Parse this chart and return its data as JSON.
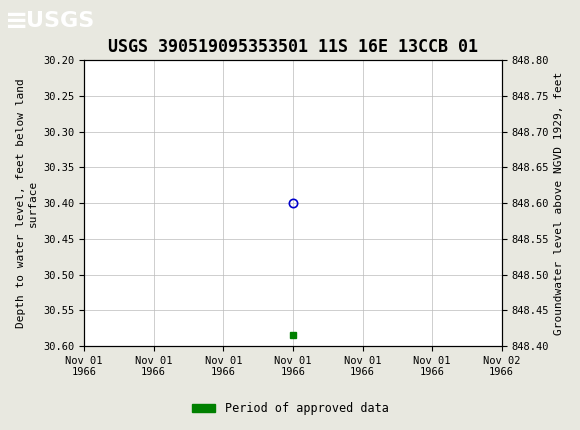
{
  "title": "USGS 390519095353501 11S 16E 13CCB 01",
  "header_color": "#1a6b3c",
  "header_text_color": "#ffffff",
  "background_color": "#e8e8e0",
  "plot_bg_color": "#ffffff",
  "grid_color": "#bbbbbb",
  "ylabel_left": "Depth to water level, feet below land\nsurface",
  "ylabel_right": "Groundwater level above NGVD 1929, feet",
  "ylim_left": [
    30.2,
    30.6
  ],
  "ylim_right": [
    848.4,
    848.8
  ],
  "yticks_left": [
    30.2,
    30.25,
    30.3,
    30.35,
    30.4,
    30.45,
    30.5,
    30.55,
    30.6
  ],
  "yticks_right": [
    848.4,
    848.45,
    848.5,
    848.55,
    848.6,
    848.65,
    848.7,
    848.75,
    848.8
  ],
  "data_point_y": 30.4,
  "data_point_color": "#0000cc",
  "approved_y": 30.585,
  "approved_color": "#008000",
  "legend_label": "Period of approved data",
  "legend_color": "#008000",
  "x_start_num": 0,
  "x_end_num": 6,
  "data_point_x_num": 3,
  "approved_x_num": 3,
  "xtick_positions": [
    0,
    1,
    2,
    3,
    4,
    5,
    6
  ],
  "xtick_labels": [
    "Nov 01\n1966",
    "Nov 01\n1966",
    "Nov 01\n1966",
    "Nov 01\n1966",
    "Nov 01\n1966",
    "Nov 01\n1966",
    "Nov 02\n1966"
  ],
  "font_family": "monospace",
  "title_fontsize": 12,
  "axis_label_fontsize": 8,
  "tick_fontsize": 7.5
}
